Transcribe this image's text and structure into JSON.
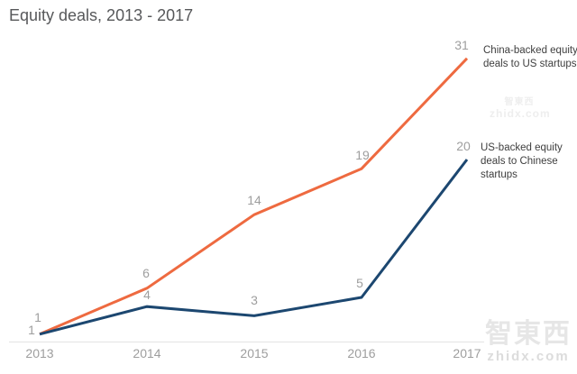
{
  "page": {
    "title": "Equity deals, 2013 - 2017"
  },
  "chart_data": {
    "type": "line",
    "title": "Equity deals, 2013 - 2017",
    "x_labels": [
      "2013",
      "2014",
      "2015",
      "2016",
      "2017"
    ],
    "series": [
      {
        "name": "China-backed equity deals to US startups",
        "values": [
          1,
          6,
          14,
          19,
          31
        ],
        "color": "#ee6a40",
        "legend_text": "China-backed equity\ndeals to US startups"
      },
      {
        "name": "US-backed equity deals to Chinese startups",
        "values": [
          1,
          4,
          3,
          5,
          20
        ],
        "color": "#1c4770",
        "legend_text": "US-backed equity\ndeals to Chinese\nstartups"
      }
    ],
    "ylim": [
      0,
      33
    ],
    "grid": false,
    "data_labels_shown": true,
    "legend_position": "right of final data points",
    "label_offsets": [
      [
        [
          -2,
          -19
        ],
        [
          -1,
          -17
        ],
        [
          0,
          -16
        ],
        [
          1,
          -15
        ],
        [
          -6,
          -15
        ]
      ],
      [
        [
          -9,
          -5
        ],
        [
          0,
          -13
        ],
        [
          0,
          -17
        ],
        [
          -2,
          -16
        ],
        [
          -4,
          -15
        ]
      ]
    ],
    "colors": {
      "title_text": "#57585a",
      "data_label": "#9e9e9e",
      "tick_label": "#9e9e9e",
      "legend_text": "#3e3e3e",
      "axis_line": "#e3e3e3"
    }
  },
  "watermark": {
    "cn": "智東西",
    "url": "zhidx.com"
  }
}
